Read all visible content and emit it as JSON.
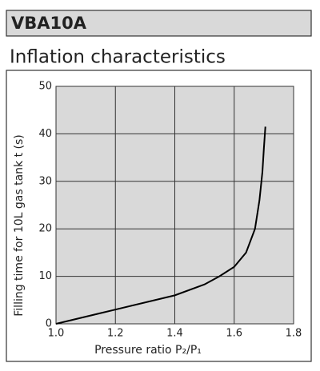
{
  "header": {
    "model": "VBA10A"
  },
  "chart_data": {
    "type": "line",
    "title": "Inflation characteristics",
    "x_label": "Pressure ratio P₂/P₁",
    "y_label": "Filling time for 10L gas tank t (s)",
    "series": [
      {
        "name": "VBA10A",
        "color": "#000000",
        "x": [
          1.0,
          1.2,
          1.4,
          1.5,
          1.55,
          1.6,
          1.64,
          1.67,
          1.685,
          1.695,
          1.7,
          1.705
        ],
        "values": [
          0,
          3,
          6,
          8.3,
          10,
          12,
          15,
          20,
          26,
          32,
          37,
          41.5
        ]
      }
    ],
    "xlim": [
      1.0,
      1.8
    ],
    "xticks": [
      {
        "value": 1.0,
        "label": "1.0"
      },
      1.2,
      1.4,
      1.6,
      1.8
    ],
    "ylim": [
      0,
      50
    ],
    "yticks": [
      0,
      10,
      20,
      30,
      40,
      50
    ],
    "grid": true
  }
}
